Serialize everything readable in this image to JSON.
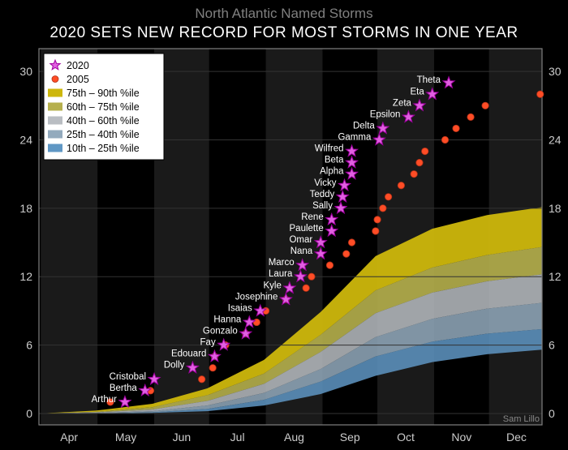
{
  "subtitle": "North Atlantic Named Storms",
  "title": "2020 SETS NEW RECORD FOR MOST STORMS IN ONE YEAR",
  "author": "Sam Lillo",
  "chart": {
    "type": "line+scatter+area",
    "background_color": "#000000",
    "plot_border_color": "#808080",
    "grid_color": "#333333",
    "month_stripe_color": "#1a1a1a",
    "months": [
      "Apr",
      "May",
      "Jun",
      "Jul",
      "Aug",
      "Sep",
      "Oct",
      "Nov",
      "Dec"
    ],
    "x_domain_days": [
      90,
      365
    ],
    "ylim": [
      -1,
      32
    ],
    "yticks": [
      0,
      6,
      12,
      18,
      24,
      30
    ],
    "axis_label_fontsize": 14,
    "storm_label_fontsize": 11.5,
    "legend": {
      "bg": "#ffffff",
      "border": "#000000",
      "fontsize": 12.5,
      "items": [
        {
          "kind": "star",
          "color": "#e060e0",
          "edge": "#a000a0",
          "label": "2020"
        },
        {
          "kind": "dot",
          "color": "#ff4d26",
          "edge": "#b03018",
          "label": "2005"
        },
        {
          "kind": "swatch",
          "color": "#cdb70c",
          "label": "75th – 90th %ile"
        },
        {
          "kind": "swatch",
          "color": "#b6b04d",
          "label": "60th – 75th %ile"
        },
        {
          "kind": "swatch",
          "color": "#b9bdc2",
          "label": "40th – 60th %ile"
        },
        {
          "kind": "swatch",
          "color": "#93aabd",
          "label": "25th – 40th %ile"
        },
        {
          "kind": "swatch",
          "color": "#5f97c4",
          "label": "10th – 25th %ile"
        }
      ]
    },
    "percentile_bands": [
      {
        "name": "p75_90",
        "color": "#cdb70c",
        "opacity": 0.95,
        "lo_key": "p75",
        "hi_key": "p90"
      },
      {
        "name": "p60_75",
        "color": "#b6b04d",
        "opacity": 0.9,
        "lo_key": "p60",
        "hi_key": "p75"
      },
      {
        "name": "p40_60",
        "color": "#b9bdc2",
        "opacity": 0.85,
        "lo_key": "p40",
        "hi_key": "p60"
      },
      {
        "name": "p25_40",
        "color": "#93aabd",
        "opacity": 0.85,
        "lo_key": "p25",
        "hi_key": "p40"
      },
      {
        "name": "p10_25",
        "color": "#5f97c4",
        "opacity": 0.85,
        "lo_key": "p10",
        "hi_key": "p25"
      }
    ],
    "percentile_curves": {
      "x": [
        90,
        121,
        152,
        182,
        213,
        244,
        274,
        305,
        335,
        365
      ],
      "p10": [
        0.0,
        0.0,
        0.05,
        0.2,
        0.7,
        1.7,
        3.3,
        4.5,
        5.2,
        5.6
      ],
      "p25": [
        0.0,
        0.0,
        0.1,
        0.4,
        1.2,
        2.8,
        5.0,
        6.3,
        7.0,
        7.4
      ],
      "p40": [
        0.0,
        0.05,
        0.2,
        0.7,
        1.8,
        3.9,
        6.7,
        8.3,
        9.2,
        9.7
      ],
      "p60": [
        0.0,
        0.1,
        0.35,
        1.1,
        2.6,
        5.4,
        8.8,
        10.6,
        11.6,
        12.2
      ],
      "p75": [
        0.0,
        0.15,
        0.55,
        1.6,
        3.5,
        6.9,
        10.8,
        12.8,
        13.9,
        14.6
      ],
      "p90": [
        0.0,
        0.25,
        0.85,
        2.2,
        4.7,
        8.9,
        13.8,
        16.2,
        17.4,
        18.1
      ]
    },
    "series_2005": {
      "color": "#ff4d26",
      "edge": "#b03018",
      "radius": 4.2,
      "points": [
        [
          129,
          1
        ],
        [
          151,
          2
        ],
        [
          179,
          3
        ],
        [
          185,
          4
        ],
        [
          186,
          5
        ],
        [
          192,
          6
        ],
        [
          203,
          7
        ],
        [
          209,
          8
        ],
        [
          214,
          9
        ],
        [
          225,
          10
        ],
        [
          236,
          11
        ],
        [
          239,
          12
        ],
        [
          249,
          13
        ],
        [
          258,
          14
        ],
        [
          261,
          15
        ],
        [
          274,
          16
        ],
        [
          275,
          17
        ],
        [
          278,
          18
        ],
        [
          281,
          19
        ],
        [
          288,
          20
        ],
        [
          295,
          21
        ],
        [
          298,
          22
        ],
        [
          301,
          23
        ],
        [
          312,
          24
        ],
        [
          318,
          25
        ],
        [
          326,
          26
        ],
        [
          334,
          27
        ],
        [
          364,
          28
        ]
      ]
    },
    "series_2020": {
      "color": "#e060e0",
      "edge": "#a000a0",
      "size": 10,
      "storms": [
        {
          "label": "Arthur",
          "day": 137,
          "n": 1
        },
        {
          "label": "Bertha",
          "day": 148,
          "n": 2
        },
        {
          "label": "Cristobal",
          "day": 153,
          "n": 3
        },
        {
          "label": "Dolly",
          "day": 174,
          "n": 4
        },
        {
          "label": "Edouard",
          "day": 186,
          "n": 5
        },
        {
          "label": "Fay",
          "day": 191,
          "n": 6
        },
        {
          "label": "Gonzalo",
          "day": 203,
          "n": 7
        },
        {
          "label": "Hanna",
          "day": 205,
          "n": 8
        },
        {
          "label": "Isaias",
          "day": 211,
          "n": 9
        },
        {
          "label": "Josephine",
          "day": 225,
          "n": 10
        },
        {
          "label": "Kyle",
          "day": 227,
          "n": 11
        },
        {
          "label": "Laura",
          "day": 233,
          "n": 12
        },
        {
          "label": "Marco",
          "day": 234,
          "n": 13
        },
        {
          "label": "Nana",
          "day": 244,
          "n": 14
        },
        {
          "label": "Omar",
          "day": 244,
          "n": 15
        },
        {
          "label": "Paulette",
          "day": 250,
          "n": 16
        },
        {
          "label": "Rene",
          "day": 250,
          "n": 17
        },
        {
          "label": "Sally",
          "day": 255,
          "n": 18
        },
        {
          "label": "Teddy",
          "day": 256,
          "n": 19
        },
        {
          "label": "Vicky",
          "day": 257,
          "n": 20
        },
        {
          "label": "Alpha",
          "day": 261,
          "n": 21
        },
        {
          "label": "Beta",
          "day": 261,
          "n": 22
        },
        {
          "label": "Wilfred",
          "day": 261,
          "n": 23
        },
        {
          "label": "Gamma",
          "day": 276,
          "n": 24
        },
        {
          "label": "Delta",
          "day": 278,
          "n": 25
        },
        {
          "label": "Epsilon",
          "day": 292,
          "n": 26
        },
        {
          "label": "Zeta",
          "day": 298,
          "n": 27
        },
        {
          "label": "Eta",
          "day": 305,
          "n": 28
        },
        {
          "label": "Theta",
          "day": 314,
          "n": 29
        }
      ]
    }
  }
}
